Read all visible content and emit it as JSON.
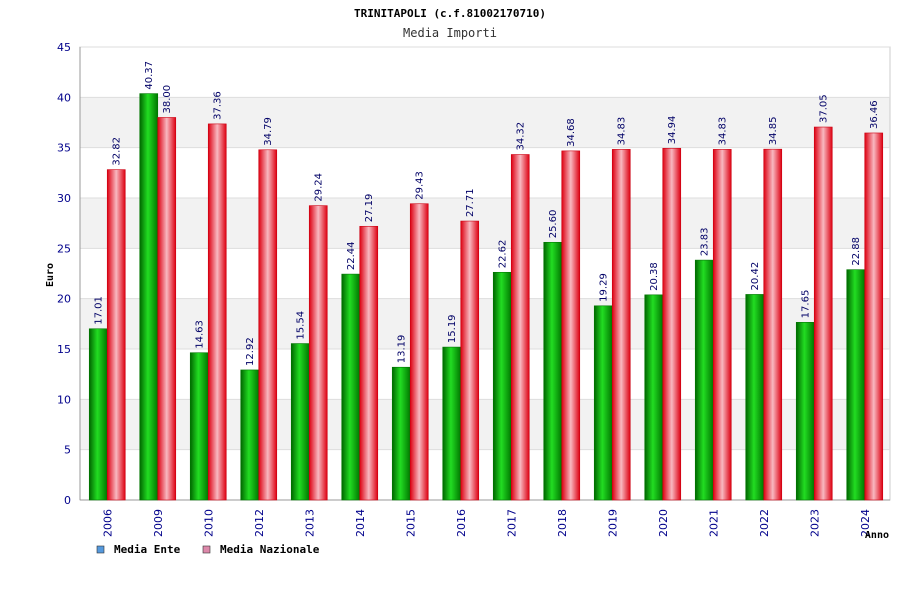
{
  "chart_data": {
    "type": "bar",
    "title": "TRINITAPOLI (c.f.81002170710)",
    "subtitle": "Media Importi",
    "ylabel": "Euro",
    "xlabel": "Anno",
    "ylim": [
      0,
      45
    ],
    "yticks": [
      0,
      5,
      10,
      15,
      20,
      25,
      30,
      35,
      40,
      45
    ],
    "grid": true,
    "legend_position": "bottom-left",
    "categories": [
      "2006",
      "2009",
      "2010",
      "2012",
      "2013",
      "2014",
      "2015",
      "2016",
      "2017",
      "2018",
      "2019",
      "2020",
      "2021",
      "2022",
      "2023",
      "2024"
    ],
    "series": [
      {
        "name": "Media Ente",
        "color": "#00aa00",
        "legend_color": "#5599dd",
        "values": [
          17.01,
          40.37,
          14.63,
          12.92,
          15.54,
          22.44,
          13.19,
          15.19,
          22.62,
          25.6,
          19.29,
          20.38,
          23.83,
          20.42,
          17.65,
          22.88
        ],
        "labels": [
          "17.01",
          "40.37",
          "14.63",
          "12.92",
          "15.54",
          "22.44",
          "13.19",
          "15.19",
          "22.62",
          "25.60",
          "19.29",
          "20.38",
          "23.83",
          "20.42",
          "17.65",
          "22.88"
        ]
      },
      {
        "name": "Media Nazionale",
        "color": "#ee2233",
        "legend_color": "#dd88aa",
        "values": [
          32.82,
          38.0,
          37.36,
          34.79,
          29.24,
          27.19,
          29.43,
          27.71,
          34.32,
          34.68,
          34.83,
          34.94,
          34.83,
          34.85,
          37.05,
          36.46
        ],
        "labels": [
          "32.82",
          "38.00",
          "37.36",
          "34.79",
          "29.24",
          "27.19",
          "29.43",
          "27.71",
          "34.32",
          "34.68",
          "34.83",
          "34.94",
          "34.83",
          "34.85",
          "37.05",
          "36.46"
        ]
      }
    ]
  }
}
